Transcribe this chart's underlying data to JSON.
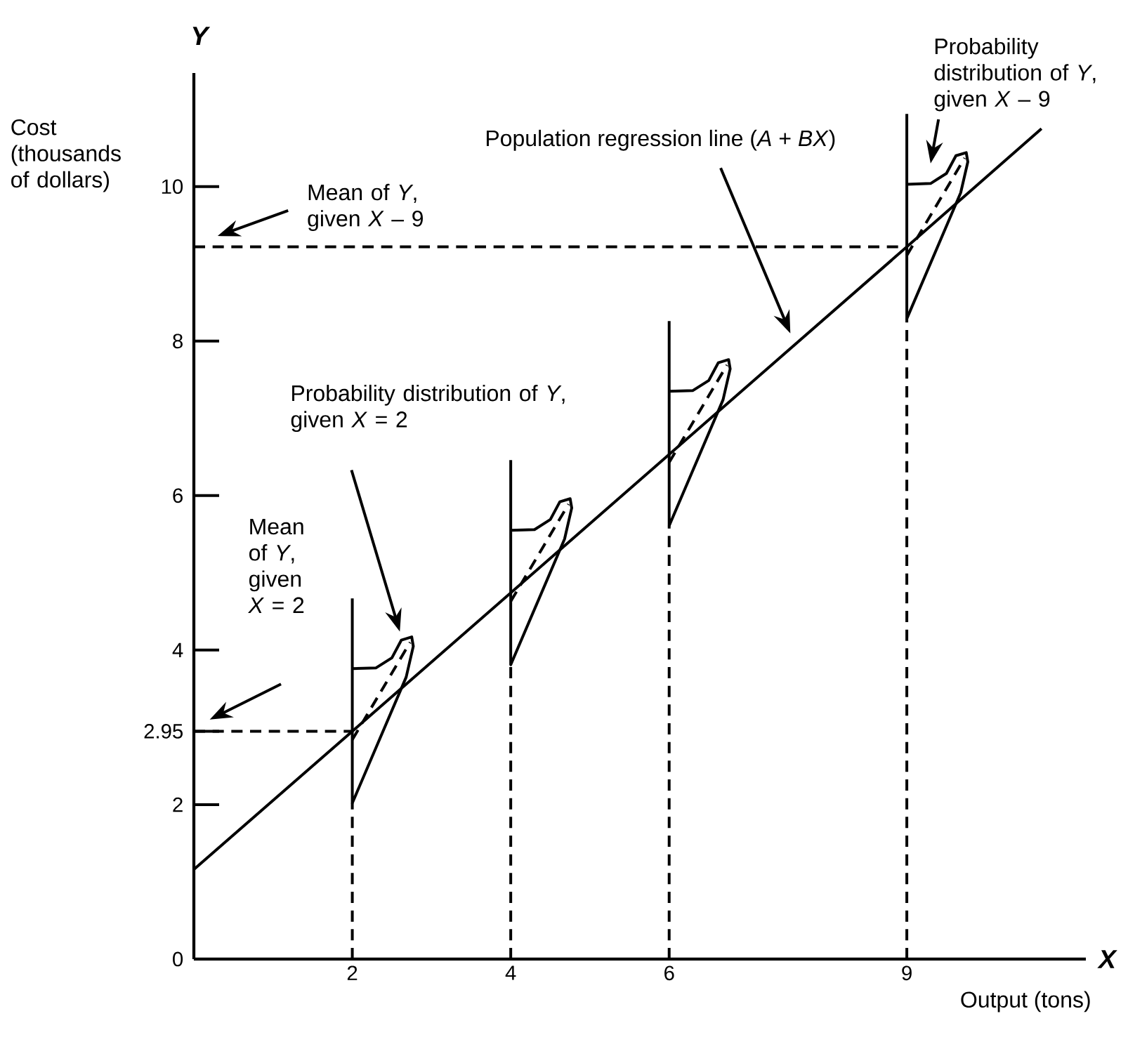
{
  "chart_data": {
    "type": "line",
    "xlabel": "Output (tons)",
    "ylabel": "Cost (thousands of dollars)",
    "xlim": [
      0,
      11.26
    ],
    "ylim": [
      0,
      11.47
    ],
    "xticks": [
      2,
      4,
      6,
      9
    ],
    "yticks": [
      0,
      2,
      2.95,
      4,
      6,
      8,
      10
    ],
    "grid": false,
    "marker": "none",
    "series": [
      {
        "color": "#000000",
        "line_style": "solid",
        "x": [
          0,
          2,
          9,
          10.7
        ],
        "values": [
          1.16,
          2.95,
          9.22,
          10.75
        ]
      },
      {
        "color": "#000000",
        "line_style": "solid",
        "x": [
          2,
          2,
          2.3,
          2.5,
          2.62,
          2.75,
          2.77,
          2.68,
          2,
          2
        ],
        "values": [
          4.67,
          3.76,
          3.77,
          3.9,
          4.13,
          4.17,
          4.05,
          3.65,
          2.02,
          3.76
        ]
      },
      {
        "color": "#000000",
        "line_style": "solid",
        "x": [
          4,
          4,
          4.3,
          4.5,
          4.62,
          4.75,
          4.77,
          4.68,
          4,
          4
        ],
        "values": [
          6.46,
          5.55,
          5.56,
          5.69,
          5.92,
          5.96,
          5.84,
          5.44,
          3.81,
          5.55
        ]
      },
      {
        "color": "#000000",
        "line_style": "solid",
        "x": [
          6,
          6,
          6.3,
          6.5,
          6.62,
          6.75,
          6.77,
          6.68,
          6,
          6
        ],
        "values": [
          8.26,
          7.35,
          7.36,
          7.49,
          7.72,
          7.76,
          7.64,
          7.24,
          5.61,
          7.35
        ]
      },
      {
        "color": "#000000",
        "line_style": "solid",
        "x": [
          9,
          9,
          9.3,
          9.5,
          9.62,
          9.75,
          9.77,
          9.68,
          9,
          9
        ],
        "values": [
          10.94,
          10.03,
          10.04,
          10.17,
          10.4,
          10.44,
          10.32,
          9.92,
          8.29,
          10.03
        ]
      },
      {
        "color": "#000000",
        "line_style": "dashed",
        "x": [
          2,
          2.73
        ],
        "values": [
          2.84,
          4.1
        ]
      },
      {
        "color": "#000000",
        "line_style": "dashed",
        "x": [
          4,
          4.73
        ],
        "values": [
          4.63,
          5.89
        ]
      },
      {
        "color": "#000000",
        "line_style": "dashed",
        "x": [
          6,
          6.73
        ],
        "values": [
          6.43,
          7.69
        ]
      },
      {
        "color": "#000000",
        "line_style": "dashed",
        "x": [
          9,
          9.73
        ],
        "values": [
          9.11,
          10.37
        ]
      },
      {
        "color": "#000000",
        "line_style": "dashed",
        "x": [
          0,
          2
        ],
        "values": [
          2.95,
          2.95
        ]
      },
      {
        "color": "#000000",
        "line_style": "dashed",
        "x": [
          0,
          9
        ],
        "values": [
          9.22,
          9.22
        ]
      },
      {
        "color": "#000000",
        "line_style": "dashed",
        "x": [
          2,
          2
        ],
        "values": [
          0,
          2.02
        ]
      },
      {
        "color": "#000000",
        "line_style": "dashed",
        "x": [
          4,
          4
        ],
        "values": [
          0,
          3.81
        ]
      },
      {
        "color": "#000000",
        "line_style": "dashed",
        "x": [
          6,
          6
        ],
        "values": [
          0,
          5.61
        ]
      },
      {
        "color": "#000000",
        "line_style": "dashed",
        "x": [
          9,
          9
        ],
        "values": [
          0,
          8.29
        ]
      }
    ],
    "annotations": [
      "Population regression line (*A* + *BX*)",
      "Mean of *Y*, given *X* – 9",
      "Probability distribution of *Y*, given *X* = 2",
      "Mean of *Y*, given *X* = 2",
      "Probability distribution of *Y*, given *X* – 9",
      "Y",
      "X"
    ]
  }
}
